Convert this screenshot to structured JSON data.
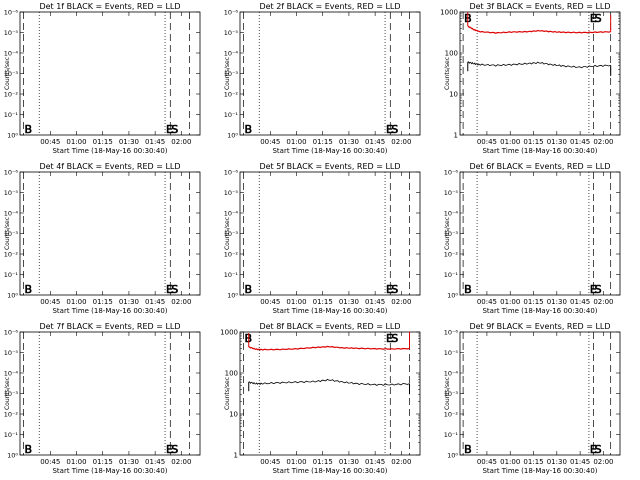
{
  "figure": {
    "xtick_labels": [
      "00:45",
      "01:00",
      "01:15",
      "01:30",
      "01:45",
      "02:00"
    ],
    "xlabel": "Start Time (18-May-16 00:30:40)",
    "ylabel": "Counts/sec",
    "log_tick_labels": [
      "1",
      "10",
      "100",
      "1000"
    ],
    "sci_tick_labels": [
      "10⁰",
      "10⁻¹",
      "10⁻²",
      "10⁻³",
      "10⁻⁴",
      "10⁻⁵",
      "10⁻⁶"
    ],
    "marker_B": "B",
    "marker_E": "E",
    "marker_S": "S",
    "colors": {
      "events": "#000000",
      "lld": "#dd0000",
      "background": "#ffffff"
    }
  },
  "chart_data": [
    {
      "type": "line",
      "title": "Det 1f BLACK = Events, RED = LLD",
      "yscale": "empty",
      "series": []
    },
    {
      "type": "line",
      "title": "Det 2f BLACK = Events, RED = LLD",
      "yscale": "empty",
      "series": []
    },
    {
      "type": "line",
      "title": "Det 3f BLACK = Events, RED = LLD",
      "yscale": "log",
      "ylim": [
        1,
        1000
      ],
      "x_unit": "minutes after 00:30:40",
      "series": [
        {
          "color": "red",
          "x": [
            2,
            6,
            10,
            20,
            30,
            40,
            48,
            56,
            64,
            74,
            84,
            94
          ],
          "y": [
            450,
            370,
            330,
            310,
            325,
            330,
            350,
            330,
            320,
            315,
            320,
            330
          ]
        },
        {
          "color": "black",
          "x": [
            2,
            6,
            10,
            20,
            30,
            40,
            48,
            56,
            64,
            74,
            84,
            94
          ],
          "y": [
            60,
            55,
            52,
            50,
            52,
            55,
            58,
            52,
            48,
            45,
            48,
            50
          ]
        }
      ]
    },
    {
      "type": "line",
      "title": "Det 4f BLACK = Events, RED = LLD",
      "yscale": "empty",
      "series": []
    },
    {
      "type": "line",
      "title": "Det 5f BLACK = Events, RED = LLD",
      "yscale": "empty",
      "series": []
    },
    {
      "type": "line",
      "title": "Det 6f BLACK = Events, RED = LLD",
      "yscale": "empty",
      "series": []
    },
    {
      "type": "line",
      "title": "Det 7f BLACK = Events, RED = LLD",
      "yscale": "empty",
      "series": []
    },
    {
      "type": "line",
      "title": "Det 8f BLACK = Events, RED = LLD",
      "yscale": "log",
      "ylim": [
        1,
        1000
      ],
      "x_unit": "minutes after 00:30:40",
      "series": [
        {
          "color": "red",
          "x": [
            2,
            6,
            10,
            20,
            30,
            40,
            48,
            56,
            64,
            74,
            84,
            94
          ],
          "y": [
            430,
            380,
            370,
            375,
            390,
            420,
            440,
            410,
            400,
            390,
            385,
            395
          ]
        },
        {
          "color": "black",
          "x": [
            2,
            6,
            10,
            20,
            30,
            40,
            48,
            56,
            64,
            74,
            84,
            94
          ],
          "y": [
            60,
            55,
            55,
            58,
            60,
            62,
            68,
            60,
            55,
            52,
            52,
            55
          ]
        }
      ]
    },
    {
      "type": "line",
      "title": "Det 9f BLACK = Events, RED = LLD",
      "yscale": "empty",
      "series": []
    }
  ]
}
